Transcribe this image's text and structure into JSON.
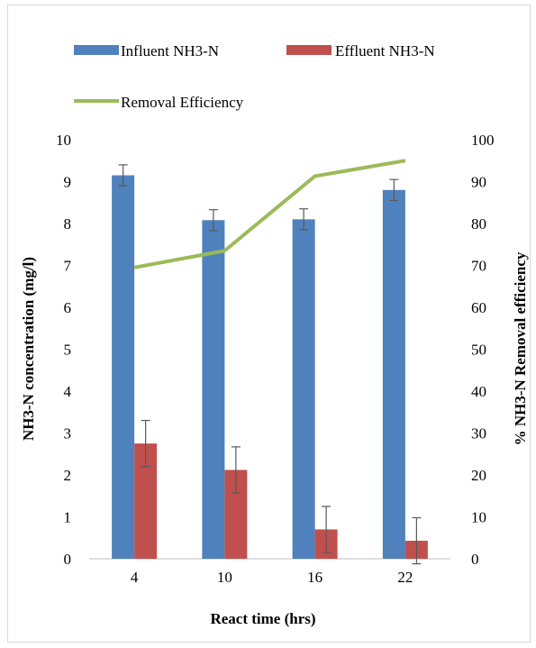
{
  "chart_data": {
    "type": "bar",
    "xlabel": "React time (hrs)",
    "ylabel": "NH3-N concentration (mg/l)",
    "y2label": "% NH3-N Removal efficiency",
    "categories": [
      "4",
      "10",
      "16",
      "22"
    ],
    "ylim": [
      0,
      10
    ],
    "y2lim": [
      0,
      100
    ],
    "yticks": [
      "0",
      "1",
      "2",
      "3",
      "4",
      "5",
      "6",
      "7",
      "8",
      "9",
      "10"
    ],
    "y2ticks": [
      "0",
      "10",
      "20",
      "30",
      "40",
      "50",
      "60",
      "70",
      "80",
      "90",
      "100"
    ],
    "grid": false,
    "legend_position": "top",
    "series": [
      {
        "name": "Influent NH3-N",
        "type": "bar",
        "axis": "left",
        "color": "#4f81bd",
        "values": [
          9.15,
          8.08,
          8.1,
          8.8
        ],
        "errors": [
          0.25,
          0.25,
          0.25,
          0.25
        ]
      },
      {
        "name": "Effluent NH3-N",
        "type": "bar",
        "axis": "left",
        "color": "#c0504d",
        "values": [
          2.75,
          2.12,
          0.7,
          0.43
        ],
        "errors": [
          0.55,
          0.55,
          0.55,
          0.55
        ]
      },
      {
        "name": "Removal Efficiency",
        "type": "line",
        "axis": "right",
        "color": "#9bbb59",
        "values": [
          69.5,
          73.5,
          91.3,
          95.0
        ]
      }
    ]
  }
}
